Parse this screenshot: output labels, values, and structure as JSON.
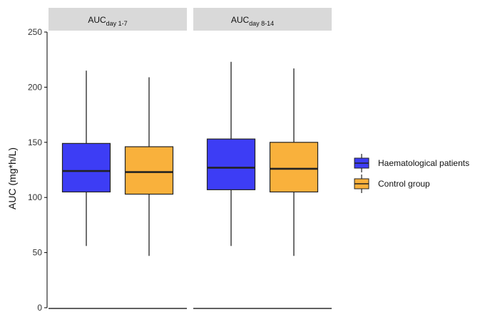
{
  "chart_data": {
    "type": "box",
    "ylabel": "AUC (mg*h/L)",
    "ylim": [
      0,
      250
    ],
    "yticks": [
      "0",
      "50",
      "100",
      "150",
      "200",
      "250"
    ],
    "grid": false,
    "legend_position": "right",
    "panels": [
      {
        "label_main": "AUC",
        "label_sub": "day 1-7"
      },
      {
        "label_main": "AUC",
        "label_sub": "day 8-14"
      }
    ],
    "series": [
      {
        "name": "Haematological patients",
        "color": "#3d3df5",
        "boxes": [
          {
            "min": 56,
            "q1": 105,
            "median": 124,
            "q3": 149,
            "max": 215
          },
          {
            "min": 56,
            "q1": 107,
            "median": 127,
            "q3": 153,
            "max": 223
          }
        ]
      },
      {
        "name": "Control group",
        "color": "#f9b13c",
        "boxes": [
          {
            "min": 47,
            "q1": 103,
            "median": 123,
            "q3": 146,
            "max": 209
          },
          {
            "min": 47,
            "q1": 105,
            "median": 126,
            "q3": 150,
            "max": 217
          }
        ]
      }
    ]
  }
}
